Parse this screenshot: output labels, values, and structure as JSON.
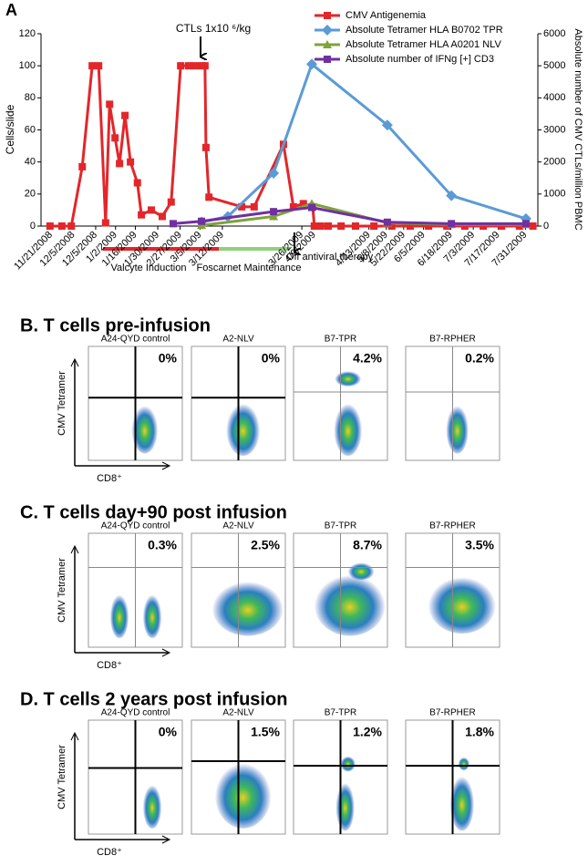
{
  "chart_data": {
    "type": "line",
    "panel_label": "A",
    "y_label": "Cells/slide",
    "y2_label": "Absolute number of CMV CTLs/million PBMC",
    "annotations": [
      "CTLs 1x10 ⁶/kg",
      "Valcyte Induction",
      "Foscarnet Maintenance",
      "Off antiviral therapy"
    ],
    "xlim": [
      0,
      100
    ],
    "xticks": [
      {
        "value": 2,
        "label": "11/21/2008"
      },
      {
        "value": 6.5,
        "label": "12/5/2008"
      },
      {
        "value": 11,
        "label": "12/5/2008"
      },
      {
        "value": 15,
        "label": "1/2/2009"
      },
      {
        "value": 19,
        "label": "1/16/2009"
      },
      {
        "value": 23.5,
        "label": "1/30/2009"
      },
      {
        "value": 28,
        "label": "2/27/2009"
      },
      {
        "value": 32,
        "label": "3/5/2009"
      },
      {
        "value": 36.5,
        "label": "3/12/2009"
      },
      {
        "value": 52.5,
        "label": "3/26/2009"
      },
      {
        "value": 55,
        "label": "4/9/2009"
      },
      {
        "value": 66,
        "label": "4/23/2009"
      },
      {
        "value": 69.5,
        "label": "5/8/2009"
      },
      {
        "value": 73,
        "label": "5/22/2009"
      },
      {
        "value": 77,
        "label": "6/5/2009"
      },
      {
        "value": 82.5,
        "label": "6/18/2009"
      },
      {
        "value": 87,
        "label": "7/3/2009"
      },
      {
        "value": 92,
        "label": "7/17/2009"
      },
      {
        "value": 97.5,
        "label": "7/31/2009"
      }
    ],
    "ylim": [
      0,
      120
    ],
    "yticks": [
      0,
      20,
      40,
      60,
      80,
      100,
      120
    ],
    "y2lim": [
      0,
      6000
    ],
    "y2ticks": [
      0,
      1000,
      2000,
      3000,
      4000,
      5000,
      6000
    ],
    "series": [
      {
        "name": "CMV Antigenemia",
        "color": "#e3262a",
        "marker": "square",
        "x": [
          1.8,
          4.2,
          6.1,
          8.3,
          10.3,
          11.6,
          13,
          13.8,
          14.9,
          15.8,
          16.9,
          18,
          19.4,
          20.2,
          22.2,
          24.4,
          26.2,
          28.1,
          29.7,
          31,
          32.3,
          33,
          33.2,
          33.8,
          40.4,
          42.9,
          48.8,
          50.8,
          52.8,
          54.7,
          55,
          56.3,
          57.8,
          60.4,
          63.3,
          67,
          70.6,
          74.3,
          78,
          81.7,
          85.3,
          89,
          92.7,
          96.3,
          99
        ],
        "values": [
          0,
          0,
          0,
          37,
          100,
          100,
          2,
          76,
          55,
          39,
          69,
          40,
          27,
          7,
          10,
          6,
          15,
          100,
          100,
          100,
          100,
          100,
          49,
          18,
          12,
          12,
          51,
          12,
          14,
          12,
          0,
          0,
          0,
          0,
          0,
          0,
          0,
          0,
          0,
          0,
          0,
          0,
          0,
          0,
          0
        ]
      },
      {
        "name": "Absolute Tetramer HLA B0702 TPR",
        "color": "#5b9bd5",
        "marker": "diamond",
        "axis": "y2",
        "x": [
          32.3,
          37.6,
          46.8,
          54.5,
          69.7,
          82.6,
          97.6
        ],
        "values": [
          125,
          300,
          1650,
          5050,
          3150,
          950,
          230
        ]
      },
      {
        "name": "Absolute Tetramer HLA A0201 NLV",
        "color": "#7ea33a",
        "marker": "triangle",
        "axis": "y2",
        "x": [
          32.3,
          46.8,
          54.5,
          69.7,
          82.6,
          97.6
        ],
        "values": [
          20,
          300,
          700,
          100,
          50,
          50
        ]
      },
      {
        "name": "Absolute number of IFNg [+] CD3",
        "color": "#7030a0",
        "marker": "square",
        "axis": "y2",
        "x": [
          26.6,
          32.3,
          46.8,
          54.5,
          69.7,
          82.6,
          97.6
        ],
        "values": [
          75,
          150,
          450,
          580,
          120,
          75,
          75
        ]
      }
    ]
  },
  "panels": [
    {
      "title": "B. T cells pre-infusion",
      "y_label": "CMV Tetramer",
      "x_label": "CD8⁺",
      "plots": [
        {
          "name": "A24-QYD control",
          "percent": "0%"
        },
        {
          "name": "A2-NLV",
          "percent": "0%"
        },
        {
          "name": "B7-TPR",
          "percent": "4.2%"
        },
        {
          "name": "B7-RPHER",
          "percent": "0.2%"
        }
      ]
    },
    {
      "title": "C. T cells day+90 post infusion",
      "y_label": "CMV Tetramer",
      "x_label": "CD8⁺",
      "plots": [
        {
          "name": "A24-QYD control",
          "percent": "0.3%"
        },
        {
          "name": "A2-NLV",
          "percent": "2.5%"
        },
        {
          "name": "B7-TPR",
          "percent": "8.7%"
        },
        {
          "name": "B7-RPHER",
          "percent": "3.5%"
        }
      ]
    },
    {
      "title": "D. T cells 2 years post infusion",
      "y_label": "CMV Tetramer",
      "x_label": "CD8⁺",
      "plots": [
        {
          "name": "A24-QYD control",
          "percent": "0%"
        },
        {
          "name": "A2-NLV",
          "percent": "1.5%"
        },
        {
          "name": "B7-TPR",
          "percent": "1.2%"
        },
        {
          "name": "B7-RPHER",
          "percent": "1.8%"
        }
      ]
    }
  ]
}
